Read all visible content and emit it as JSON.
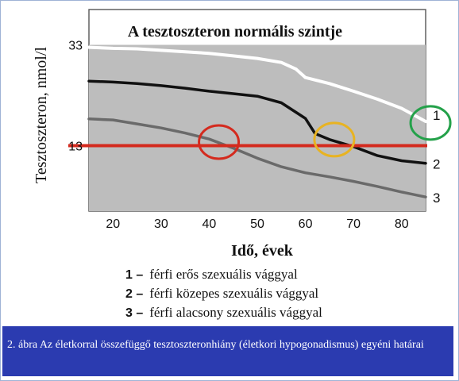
{
  "chart_data": {
    "type": "line",
    "title": "A tesztoszteron normális szintje",
    "xlabel": "Idő, évek",
    "ylabel": "Tesztoszteron, nmol/l",
    "x_ticks": [
      "20",
      "30",
      "40",
      "50",
      "60",
      "70",
      "80"
    ],
    "y_ticks": [
      "33",
      "13"
    ],
    "xlim": [
      15,
      85
    ],
    "ylim": [
      0,
      40
    ],
    "reference_line": {
      "y": 13,
      "color": "#d42a1e"
    },
    "shaded_band": {
      "y_from": 13,
      "y_to": 33
    },
    "series": [
      {
        "name": "1",
        "color": "#ffffff",
        "x": [
          15,
          20,
          25,
          30,
          35,
          40,
          45,
          50,
          55,
          58,
          60,
          65,
          70,
          75,
          80,
          85
        ],
        "y": [
          32.5,
          32.3,
          32.2,
          31.9,
          31.6,
          31.3,
          30.8,
          30.3,
          29.5,
          28.2,
          26.5,
          25.3,
          23.8,
          22.2,
          20.4,
          17.8
        ]
      },
      {
        "name": "2",
        "color": "#111111",
        "x": [
          15,
          20,
          25,
          30,
          35,
          40,
          45,
          50,
          55,
          60,
          62,
          65,
          70,
          75,
          80,
          85
        ],
        "y": [
          25.8,
          25.6,
          25.3,
          24.9,
          24.4,
          23.8,
          23.3,
          22.8,
          21.5,
          18.4,
          15.4,
          14.2,
          12.8,
          11.0,
          10.0,
          9.5
        ]
      },
      {
        "name": "3",
        "color": "#6a6a6a",
        "x": [
          15,
          20,
          25,
          30,
          35,
          40,
          45,
          50,
          55,
          60,
          65,
          70,
          75,
          80,
          85
        ],
        "y": [
          18.3,
          18.1,
          17.3,
          16.5,
          15.5,
          14.3,
          12.5,
          10.5,
          8.8,
          7.6,
          6.8,
          5.9,
          4.9,
          3.8,
          2.8
        ]
      }
    ],
    "markers": [
      {
        "type": "circle",
        "color": "#d42a1e",
        "x": 42,
        "y": 13.7
      },
      {
        "type": "circle",
        "color": "#e8b322",
        "x": 66,
        "y": 14.2
      },
      {
        "type": "circle",
        "color": "#24a14a",
        "x": 86,
        "y": 17.5
      }
    ]
  },
  "legend": [
    {
      "num": "1 –",
      "text": "férfi erős szexuális vággyal"
    },
    {
      "num": "2 –",
      "text": "férfi közepes szexuális vággyal"
    },
    {
      "num": "3 –",
      "text": "férfi alacsony szexuális vággyal"
    }
  ],
  "caption": "2. ábra Az életkorral összefüggő tesztoszteronhiány (életkori hypogonadismus) egyéni határai"
}
